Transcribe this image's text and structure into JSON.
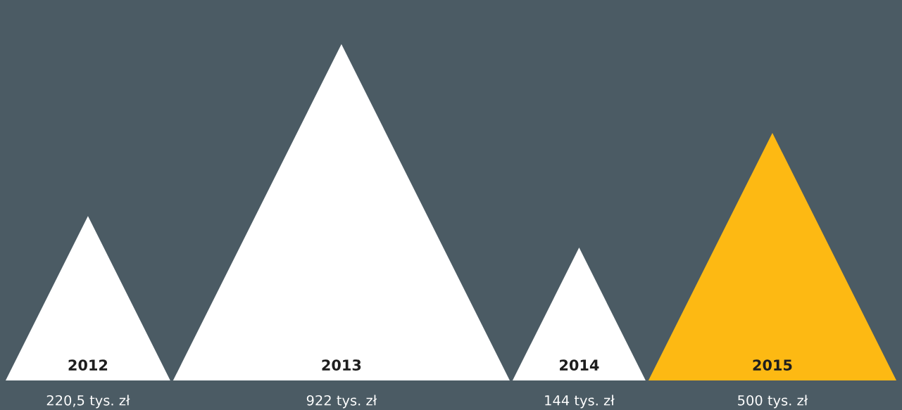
{
  "chart_data": {
    "type": "other",
    "categories": [
      "2012",
      "2013",
      "2014",
      "2015"
    ],
    "values": [
      220.5,
      922,
      144,
      500
    ],
    "value_labels": [
      "220,5 tys. zł",
      "922 tys. zł",
      "144 tys. zł",
      "500 tys. zł"
    ],
    "colors": [
      "#ffffff",
      "#ffffff",
      "#ffffff",
      "#fdb913"
    ]
  }
}
